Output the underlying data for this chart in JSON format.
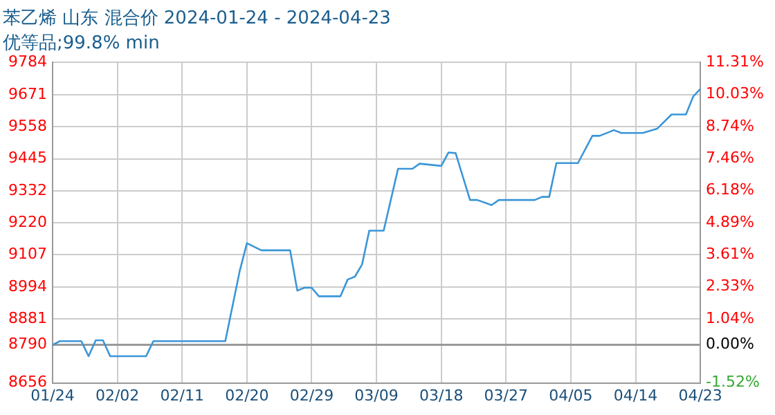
{
  "chart_data": {
    "type": "line",
    "title": "苯乙烯 山东 混合价 2024-01-24 - 2024-04-23",
    "subtitle": "优等品;99.8% min",
    "x": [
      "2024-01-24",
      "2024-01-25",
      "2024-01-28",
      "2024-01-29",
      "2024-01-30",
      "2024-01-31",
      "2024-02-01",
      "2024-02-06",
      "2024-02-07",
      "2024-02-17",
      "2024-02-19",
      "2024-02-20",
      "2024-02-22",
      "2024-02-26",
      "2024-02-27",
      "2024-02-28",
      "2024-02-29",
      "2024-03-01",
      "2024-03-04",
      "2024-03-05",
      "2024-03-06",
      "2024-03-07",
      "2024-03-08",
      "2024-03-10",
      "2024-03-12",
      "2024-03-14",
      "2024-03-15",
      "2024-03-18",
      "2024-03-19",
      "2024-03-20",
      "2024-03-22",
      "2024-03-23",
      "2024-03-25",
      "2024-03-26",
      "2024-03-31",
      "2024-04-01",
      "2024-04-02",
      "2024-04-03",
      "2024-04-06",
      "2024-04-08",
      "2024-04-09",
      "2024-04-11",
      "2024-04-12",
      "2024-04-15",
      "2024-04-17",
      "2024-04-19",
      "2024-04-21",
      "2024-04-22",
      "2024-04-23"
    ],
    "series": [
      {
        "color": "#3a96d8",
        "values": [
          8790,
          8803,
          8803,
          8750,
          8806,
          8806,
          8750,
          8750,
          8803,
          8803,
          9050,
          9148,
          9123,
          9123,
          8981,
          8991,
          8991,
          8961,
          8961,
          9020,
          9030,
          9073,
          9192,
          9192,
          9410,
          9410,
          9428,
          9420,
          9467,
          9465,
          9300,
          9300,
          9282,
          9300,
          9300,
          9311,
          9311,
          9430,
          9430,
          9526,
          9526,
          9546,
          9536,
          9536,
          9551,
          9601,
          9601,
          9664,
          9691
        ]
      }
    ],
    "xlim": [
      "2024-01-24",
      "2024-04-23"
    ],
    "xticks": [
      {
        "value": "2024-01-24",
        "label": "01/24"
      },
      {
        "value": "2024-02-02",
        "label": "02/02"
      },
      {
        "value": "2024-02-11",
        "label": "02/11"
      },
      {
        "value": "2024-02-20",
        "label": "02/20"
      },
      {
        "value": "2024-02-29",
        "label": "02/29"
      },
      {
        "value": "2024-03-09",
        "label": "03/09"
      },
      {
        "value": "2024-03-18",
        "label": "03/18"
      },
      {
        "value": "2024-03-27",
        "label": "03/27"
      },
      {
        "value": "2024-04-05",
        "label": "04/05"
      },
      {
        "value": "2024-04-14",
        "label": "04/14"
      },
      {
        "value": "2024-04-23",
        "label": "04/23"
      }
    ],
    "ylim": [
      8656,
      9784
    ],
    "yticks": [
      8656,
      8790,
      8881,
      8994,
      9107,
      9220,
      9332,
      9445,
      9558,
      9671,
      9784
    ],
    "y2lim": [
      -1.52,
      11.31
    ],
    "y2ticks": [
      {
        "value": -1.52,
        "label": "-1.52%"
      },
      {
        "value": 0,
        "label": "0.00%"
      },
      {
        "value": 1.04,
        "label": "1.04%"
      },
      {
        "value": 2.33,
        "label": "2.33%"
      },
      {
        "value": 3.61,
        "label": "3.61%"
      },
      {
        "value": 4.89,
        "label": "4.89%"
      },
      {
        "value": 6.18,
        "label": "6.18%"
      },
      {
        "value": 7.46,
        "label": "7.46%"
      },
      {
        "value": 8.74,
        "label": "8.74%"
      },
      {
        "value": 10.03,
        "label": "10.03%"
      },
      {
        "value": 11.31,
        "label": "11.31%"
      }
    ],
    "ref_lines": [
      {
        "axis": "y",
        "value": 8790,
        "color": "#999999"
      }
    ],
    "grid": true,
    "legend": false,
    "marker": "none",
    "line_style": "solid"
  }
}
